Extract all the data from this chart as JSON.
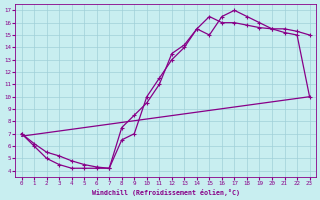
{
  "xlabel": "Windchill (Refroidissement éolien,°C)",
  "xlim": [
    -0.5,
    23.5
  ],
  "ylim": [
    3.5,
    17.5
  ],
  "xticks": [
    0,
    1,
    2,
    3,
    4,
    5,
    6,
    7,
    8,
    9,
    10,
    11,
    12,
    13,
    14,
    15,
    16,
    17,
    18,
    19,
    20,
    21,
    22,
    23
  ],
  "yticks": [
    4,
    5,
    6,
    7,
    8,
    9,
    10,
    11,
    12,
    13,
    14,
    15,
    16,
    17
  ],
  "bg_color": "#c8eef0",
  "line_color": "#880088",
  "grid_color": "#a0d0d8",
  "line1_x": [
    0,
    1,
    2,
    3,
    4,
    5,
    6,
    7,
    8,
    9,
    10,
    11,
    12,
    13,
    14,
    15,
    16,
    17,
    18,
    19,
    20,
    21,
    22,
    23
  ],
  "line1_y": [
    7.0,
    6.2,
    5.5,
    5.2,
    4.8,
    4.5,
    4.3,
    4.2,
    7.5,
    8.5,
    9.5,
    11.0,
    13.5,
    14.2,
    15.5,
    16.5,
    16.0,
    16.0,
    15.8,
    15.6,
    15.5,
    15.2,
    15.0,
    10.0
  ],
  "line2_x": [
    0,
    1,
    2,
    3,
    4,
    5,
    6,
    7,
    8,
    9,
    10,
    11,
    12,
    13,
    14,
    15,
    16,
    17,
    18,
    19,
    20,
    21,
    22,
    23
  ],
  "line2_y": [
    7.0,
    6.0,
    5.0,
    4.5,
    4.2,
    4.2,
    4.2,
    4.2,
    6.5,
    7.0,
    10.0,
    11.5,
    13.0,
    14.0,
    15.5,
    15.0,
    16.5,
    17.0,
    16.5,
    16.0,
    15.5,
    15.5,
    15.3,
    15.0
  ],
  "line3_x": [
    0,
    23
  ],
  "line3_y": [
    6.8,
    10.0
  ]
}
